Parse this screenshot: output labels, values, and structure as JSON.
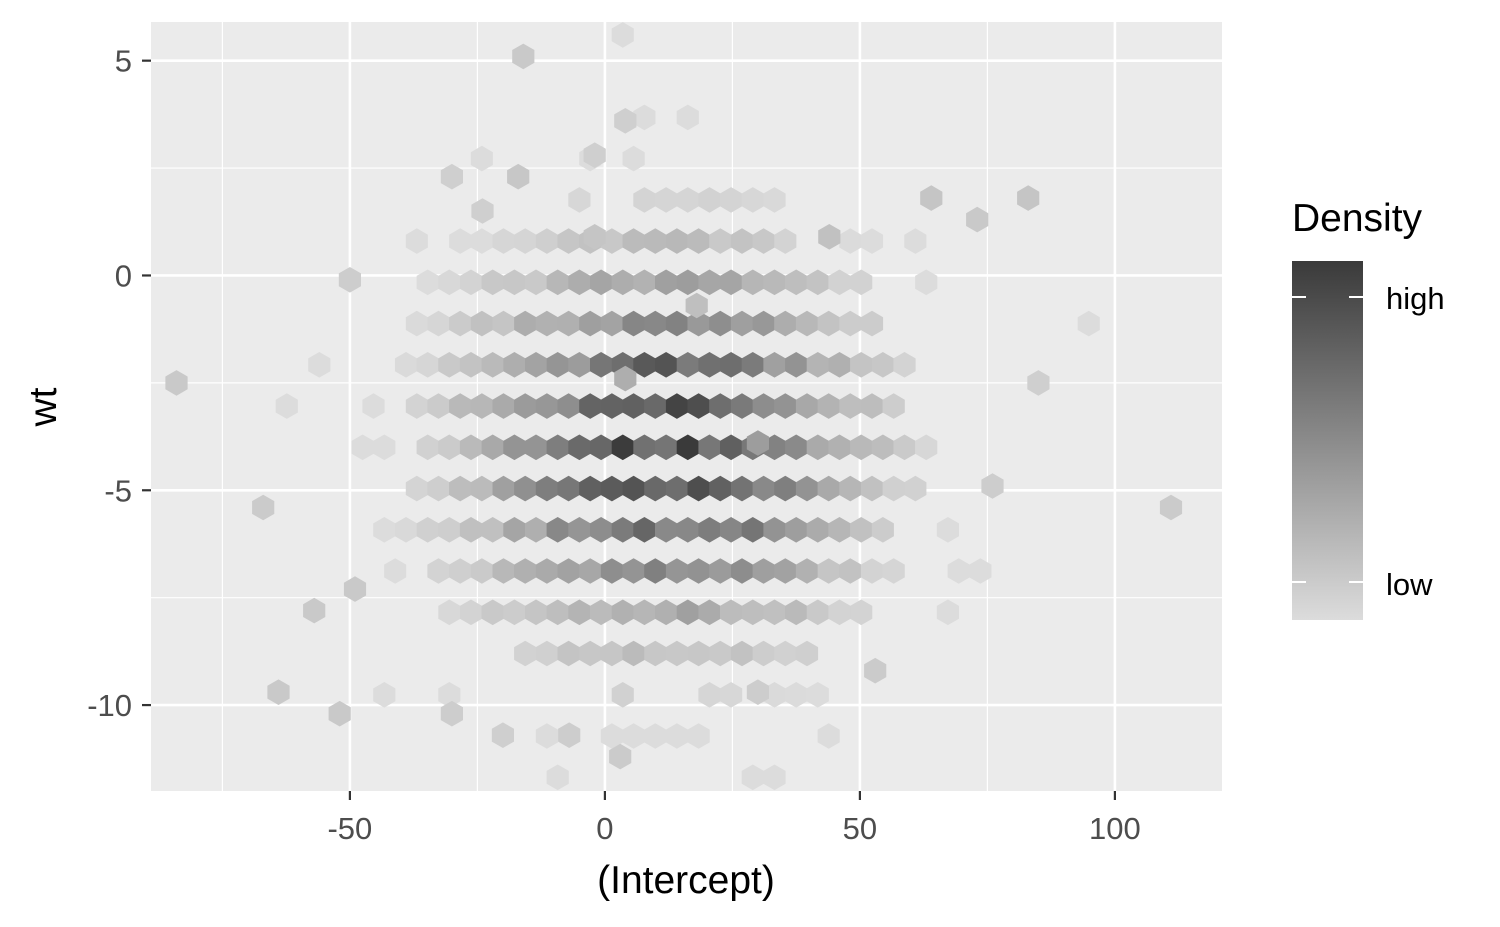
{
  "chart_data": {
    "type": "heatmap",
    "subtype": "hexbin",
    "title": "",
    "xlabel": "(Intercept)",
    "ylabel": "wt",
    "xlim": [
      -89,
      121
    ],
    "ylim": [
      -12,
      5.9
    ],
    "x_ticks": [
      -50,
      0,
      50,
      100
    ],
    "x_tick_labels": [
      "-50",
      "0",
      "50",
      "100"
    ],
    "y_ticks": [
      5,
      0,
      -5,
      -10
    ],
    "y_tick_labels": [
      "5",
      "0",
      "-5",
      "-10"
    ],
    "grid": true,
    "legend": {
      "title": "Density",
      "placement": "right",
      "labels": [
        "high",
        "low"
      ],
      "high_color": "#3a3a3a",
      "low_color": "#dcdcdc"
    },
    "hexbin_center": {
      "x": 12,
      "y": -4
    },
    "hexbin_spread": {
      "x": 22,
      "y": 2.6
    },
    "hex_bins": [
      [
        -16,
        5.1,
        0.08
      ],
      [
        4,
        3.6,
        0.05
      ],
      [
        -2,
        2.8,
        0.05
      ],
      [
        64,
        1.8,
        0.1
      ],
      [
        -2,
        0.9,
        0.1
      ],
      [
        -24,
        1.5,
        0.05
      ],
      [
        -50,
        -0.1,
        0.06
      ],
      [
        -84,
        -2.5,
        0.08
      ],
      [
        -67,
        -5.4,
        0.07
      ],
      [
        -57,
        -7.8,
        0.08
      ],
      [
        -52,
        -10.2,
        0.08
      ],
      [
        -64,
        -9.7,
        0.08
      ],
      [
        -49,
        -7.3,
        0.08
      ],
      [
        -30,
        -10.2,
        0.06
      ],
      [
        -20,
        -10.7,
        0.05
      ],
      [
        -7,
        -10.7,
        0.06
      ],
      [
        3,
        -11.2,
        0.07
      ],
      [
        30,
        -9.7,
        0.06
      ],
      [
        53,
        -9.2,
        0.07
      ],
      [
        73,
        1.3,
        0.08
      ],
      [
        83,
        1.8,
        0.1
      ],
      [
        85,
        -2.5,
        0.05
      ],
      [
        76,
        -4.9,
        0.06
      ],
      [
        111,
        -5.4,
        0.07
      ],
      [
        -17,
        2.3,
        0.09
      ],
      [
        -30,
        2.3,
        0.05
      ],
      [
        4,
        -2.4,
        0.23
      ],
      [
        30,
        -3.9,
        0.33
      ],
      [
        18,
        -0.7,
        0.13
      ],
      [
        44,
        0.9,
        0.12
      ]
    ]
  }
}
